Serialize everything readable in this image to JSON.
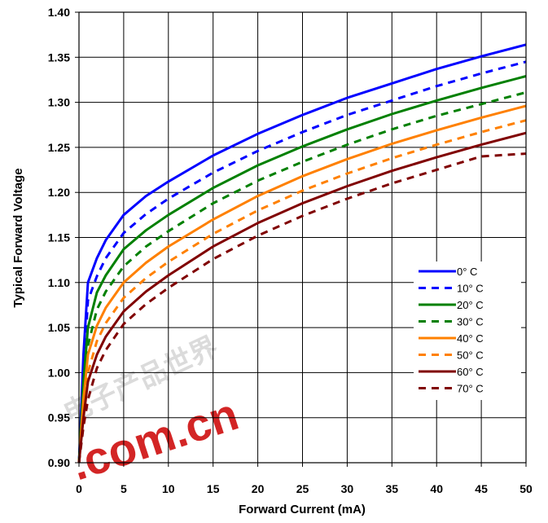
{
  "chart_data": {
    "type": "line",
    "title": "",
    "xlabel": "Forward Current (mA)",
    "ylabel": "Typical Forward Voltage",
    "xlim": [
      0,
      50
    ],
    "ylim": [
      0.9,
      1.4
    ],
    "x_ticks": [
      "0",
      "5",
      "10",
      "15",
      "20",
      "25",
      "30",
      "35",
      "40",
      "45",
      "50"
    ],
    "y_ticks": [
      "0.90",
      "0.95",
      "1.00",
      "1.05",
      "1.10",
      "1.15",
      "1.20",
      "1.25",
      "1.30",
      "1.35",
      "1.40"
    ],
    "grid": true,
    "legend_position": "right",
    "x": [
      0,
      0.5,
      1,
      2,
      3,
      5,
      7.5,
      10,
      15,
      20,
      25,
      30,
      35,
      40,
      45,
      50
    ],
    "series": [
      {
        "name": "0° C",
        "color": "#0000ff",
        "dash": "solid",
        "values": [
          0.9,
          1.02,
          1.1,
          1.127,
          1.147,
          1.175,
          1.196,
          1.212,
          1.241,
          1.265,
          1.286,
          1.305,
          1.321,
          1.337,
          1.351,
          1.364
        ]
      },
      {
        "name": "10° C",
        "color": "#0000ff",
        "dash": "dashed",
        "values": [
          0.9,
          1.0,
          1.08,
          1.107,
          1.127,
          1.155,
          1.176,
          1.193,
          1.222,
          1.246,
          1.267,
          1.286,
          1.302,
          1.318,
          1.332,
          1.345
        ]
      },
      {
        "name": "20° C",
        "color": "#008000",
        "dash": "solid",
        "values": [
          0.9,
          0.99,
          1.05,
          1.089,
          1.108,
          1.137,
          1.158,
          1.175,
          1.205,
          1.23,
          1.251,
          1.27,
          1.287,
          1.302,
          1.316,
          1.329
        ]
      },
      {
        "name": "30° C",
        "color": "#008000",
        "dash": "dashed",
        "values": [
          0.9,
          0.98,
          1.03,
          1.07,
          1.09,
          1.118,
          1.14,
          1.157,
          1.188,
          1.213,
          1.234,
          1.253,
          1.27,
          1.285,
          1.298,
          1.311
        ]
      },
      {
        "name": "40° C",
        "color": "#ff8000",
        "dash": "solid",
        "values": [
          0.9,
          0.97,
          1.02,
          1.052,
          1.072,
          1.1,
          1.122,
          1.14,
          1.17,
          1.196,
          1.218,
          1.237,
          1.254,
          1.269,
          1.283,
          1.296
        ]
      },
      {
        "name": "50° C",
        "color": "#ff8000",
        "dash": "dashed",
        "values": [
          0.9,
          0.96,
          1.0,
          1.035,
          1.055,
          1.083,
          1.105,
          1.123,
          1.154,
          1.18,
          1.202,
          1.221,
          1.238,
          1.253,
          1.267,
          1.28
        ]
      },
      {
        "name": "60° C",
        "color": "#800000",
        "dash": "solid",
        "values": [
          0.9,
          0.95,
          0.99,
          1.02,
          1.04,
          1.068,
          1.09,
          1.108,
          1.14,
          1.166,
          1.188,
          1.207,
          1.224,
          1.239,
          1.253,
          1.266
        ]
      },
      {
        "name": "70° C",
        "color": "#800000",
        "dash": "dashed",
        "values": [
          0.9,
          0.94,
          0.97,
          1.005,
          1.025,
          1.054,
          1.076,
          1.094,
          1.126,
          1.152,
          1.174,
          1.193,
          1.21,
          1.225,
          1.24,
          1.243
        ]
      }
    ]
  },
  "watermark": {
    "text": ".com.cn",
    "chinese": "电子产品世界",
    "color": "#cc0000"
  }
}
